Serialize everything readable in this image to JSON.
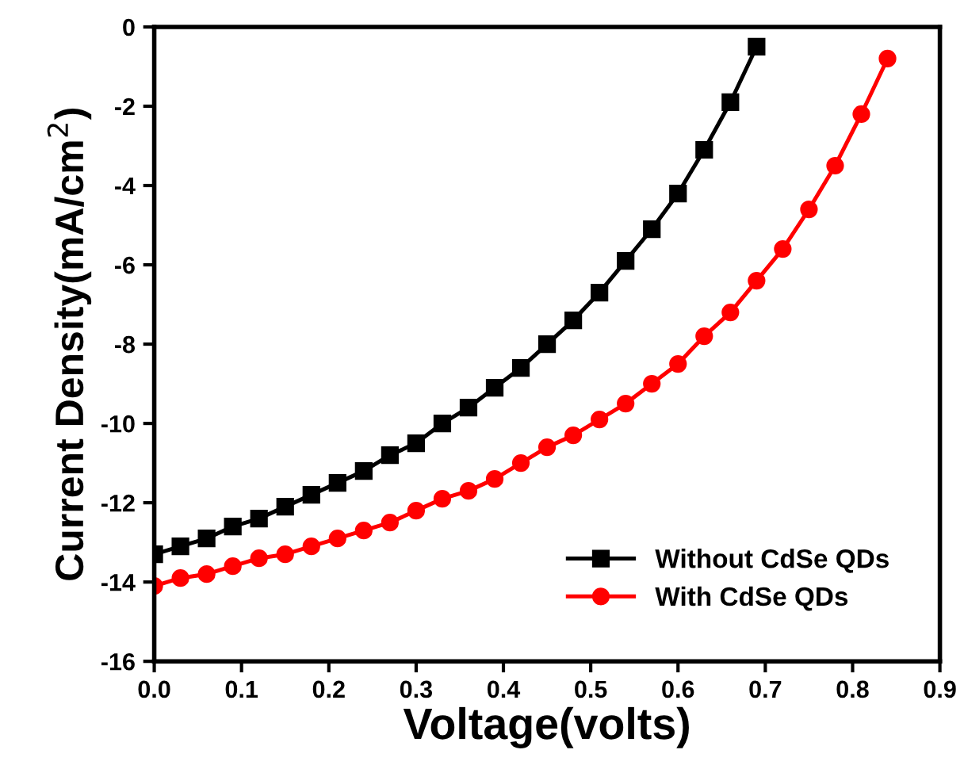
{
  "chart_data": {
    "type": "line",
    "xlabel": "Voltage(volts)",
    "ylabel": "Current Density(mA/cm$^{2}$)",
    "xlim": [
      0,
      0.9
    ],
    "xticks": [
      {
        "value": 0,
        "label": "0.0"
      },
      0.1,
      0.2,
      0.3,
      0.4,
      0.5,
      0.6,
      0.7,
      0.8,
      0.9
    ],
    "ylim": [
      -16,
      0
    ],
    "yticks": [
      -16,
      -14,
      -12,
      -10,
      -8,
      -6,
      -4,
      -2,
      0
    ],
    "grid": false,
    "legend": "bottom right",
    "series": [
      {
        "name": "Without CdSe QDs",
        "color": "#000000",
        "marker": "square",
        "x": [
          0,
          0.03,
          0.06,
          0.09,
          0.12,
          0.15,
          0.18,
          0.21,
          0.24,
          0.27,
          0.3,
          0.33,
          0.36,
          0.39,
          0.42,
          0.45,
          0.48,
          0.51,
          0.54,
          0.57,
          0.6,
          0.63,
          0.66,
          0.69
        ],
        "values": [
          -13.3,
          -13.1,
          -12.9,
          -12.6,
          -12.4,
          -12.1,
          -11.8,
          -11.5,
          -11.2,
          -10.8,
          -10.5,
          -10.0,
          -9.6,
          -9.1,
          -8.6,
          -8.0,
          -7.4,
          -6.7,
          -5.9,
          -5.1,
          -4.2,
          -3.1,
          -1.9,
          -0.5
        ]
      },
      {
        "name": "With CdSe QDs",
        "color": "#ff0000",
        "marker": "circle",
        "x": [
          0,
          0.03,
          0.06,
          0.09,
          0.12,
          0.15,
          0.18,
          0.21,
          0.24,
          0.27,
          0.3,
          0.33,
          0.36,
          0.39,
          0.42,
          0.45,
          0.48,
          0.51,
          0.54,
          0.57,
          0.6,
          0.63,
          0.66,
          0.69,
          0.72,
          0.75,
          0.78,
          0.81,
          0.84
        ],
        "values": [
          -14.1,
          -13.9,
          -13.8,
          -13.6,
          -13.4,
          -13.3,
          -13.1,
          -12.9,
          -12.7,
          -12.5,
          -12.2,
          -11.9,
          -11.7,
          -11.4,
          -11.0,
          -10.6,
          -10.3,
          -9.9,
          -9.5,
          -9.0,
          -8.5,
          -7.8,
          -7.2,
          -6.4,
          -5.6,
          -4.6,
          -3.5,
          -2.2,
          -0.8
        ]
      }
    ]
  }
}
